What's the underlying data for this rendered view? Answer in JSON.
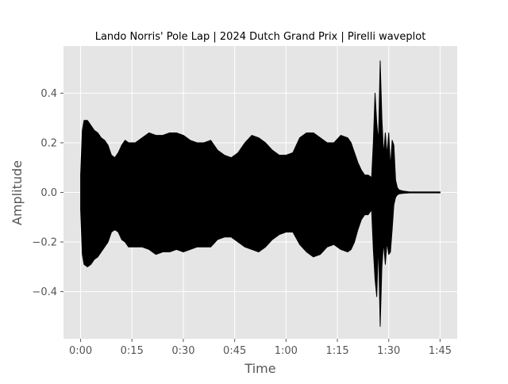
{
  "chart_data": {
    "type": "area",
    "title": "Lando Norris' Pole Lap | 2024 Dutch Grand Prix | Pirelli waveplot",
    "xlabel": "Time",
    "ylabel": "Amplitude",
    "x_unit": "seconds",
    "xlim": [
      -5,
      110
    ],
    "ylim": [
      -0.59,
      0.59
    ],
    "grid": true,
    "style": "ggplot",
    "x_ticks": [
      {
        "value": 0,
        "label": "0:00"
      },
      {
        "value": 15,
        "label": "0:15"
      },
      {
        "value": 30,
        "label": "0:30"
      },
      {
        "value": 45,
        "label": "0:45"
      },
      {
        "value": 60,
        "label": "1:00"
      },
      {
        "value": 75,
        "label": "1:15"
      },
      {
        "value": 90,
        "label": "1:30"
      },
      {
        "value": 105,
        "label": "1:45"
      }
    ],
    "y_ticks": [
      {
        "value": 0.4,
        "label": "0.4"
      },
      {
        "value": 0.2,
        "label": "0.2"
      },
      {
        "value": 0.0,
        "label": "0.0"
      },
      {
        "value": -0.2,
        "label": "−0.2"
      },
      {
        "value": -0.4,
        "label": "−0.4"
      }
    ],
    "envelope": {
      "name": "waveform",
      "color": "#000000",
      "x": [
        0,
        0.5,
        1,
        2,
        3,
        4,
        5,
        6,
        7,
        8,
        9,
        10,
        11,
        12,
        13,
        14,
        16,
        18,
        20,
        22,
        24,
        26,
        28,
        30,
        32,
        34,
        36,
        38,
        40,
        42,
        44,
        46,
        48,
        50,
        52,
        54,
        56,
        58,
        60,
        62,
        64,
        66,
        68,
        70,
        72,
        74,
        76,
        78,
        79,
        80,
        81,
        82,
        83,
        84,
        85,
        85.5,
        86,
        86.5,
        87,
        87.5,
        88,
        88.5,
        89,
        89.5,
        90,
        90.5,
        91,
        91.5,
        92,
        92.5,
        93,
        94,
        95,
        96,
        100,
        105
      ],
      "upper": [
        0.07,
        0.25,
        0.29,
        0.29,
        0.27,
        0.25,
        0.24,
        0.22,
        0.21,
        0.19,
        0.15,
        0.14,
        0.16,
        0.19,
        0.21,
        0.2,
        0.2,
        0.22,
        0.24,
        0.23,
        0.23,
        0.24,
        0.24,
        0.23,
        0.21,
        0.2,
        0.2,
        0.21,
        0.17,
        0.15,
        0.14,
        0.16,
        0.2,
        0.23,
        0.22,
        0.2,
        0.17,
        0.15,
        0.15,
        0.16,
        0.22,
        0.24,
        0.24,
        0.22,
        0.2,
        0.2,
        0.23,
        0.22,
        0.2,
        0.16,
        0.12,
        0.09,
        0.07,
        0.07,
        0.06,
        0.2,
        0.4,
        0.28,
        0.2,
        0.53,
        0.3,
        0.15,
        0.24,
        0.15,
        0.24,
        0.1,
        0.21,
        0.19,
        0.05,
        0.02,
        0.01,
        0.006,
        0.004,
        0.002,
        0.002,
        0.002
      ],
      "lower": [
        -0.07,
        -0.25,
        -0.29,
        -0.3,
        -0.29,
        -0.27,
        -0.26,
        -0.24,
        -0.22,
        -0.2,
        -0.16,
        -0.15,
        -0.16,
        -0.19,
        -0.2,
        -0.22,
        -0.22,
        -0.22,
        -0.23,
        -0.25,
        -0.24,
        -0.24,
        -0.23,
        -0.24,
        -0.23,
        -0.22,
        -0.22,
        -0.22,
        -0.19,
        -0.18,
        -0.18,
        -0.2,
        -0.22,
        -0.23,
        -0.24,
        -0.22,
        -0.19,
        -0.17,
        -0.16,
        -0.16,
        -0.21,
        -0.24,
        -0.26,
        -0.25,
        -0.22,
        -0.21,
        -0.23,
        -0.24,
        -0.23,
        -0.2,
        -0.15,
        -0.11,
        -0.09,
        -0.09,
        -0.07,
        -0.23,
        -0.35,
        -0.42,
        -0.2,
        -0.54,
        -0.3,
        -0.2,
        -0.29,
        -0.2,
        -0.25,
        -0.24,
        -0.15,
        -0.05,
        -0.02,
        -0.01,
        -0.006,
        -0.004,
        -0.003,
        -0.002,
        -0.002,
        -0.002
      ]
    }
  }
}
